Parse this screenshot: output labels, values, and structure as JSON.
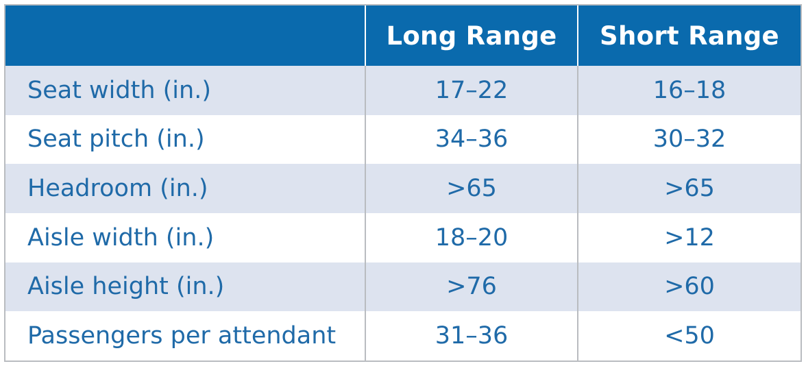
{
  "table": {
    "headers": [
      "",
      "Long Range",
      "Short Range"
    ],
    "rows": [
      {
        "label": "Seat width (in.)",
        "long": "17–22",
        "short": "16–18"
      },
      {
        "label": "Seat pitch (in.)",
        "long": "34–36",
        "short": "30–32"
      },
      {
        "label": "Headroom (in.)",
        "long": ">65",
        "short": ">65"
      },
      {
        "label": "Aisle width (in.)",
        "long": "18–20",
        "short": ">12"
      },
      {
        "label": "Aisle height (in.)",
        "long": ">76",
        "short": ">60"
      },
      {
        "label": "Passengers per attendant",
        "long": "31–36",
        "short": "<50"
      }
    ]
  },
  "colors": {
    "header_bg": "#0a6aad",
    "header_text": "#ffffff",
    "shaded_row_bg": "#dde3ef",
    "cell_text": "#1f6aa8",
    "border": "#b9bcc0"
  }
}
